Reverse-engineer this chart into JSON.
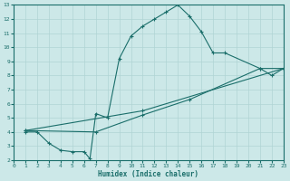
{
  "xlabel": "Humidex (Indice chaleur)",
  "xlim": [
    0,
    23
  ],
  "ylim": [
    2,
    13
  ],
  "xticks": [
    0,
    1,
    2,
    3,
    4,
    5,
    6,
    7,
    8,
    9,
    10,
    11,
    12,
    13,
    14,
    15,
    16,
    17,
    18,
    19,
    20,
    21,
    22,
    23
  ],
  "yticks": [
    2,
    3,
    4,
    5,
    6,
    7,
    8,
    9,
    10,
    11,
    12,
    13
  ],
  "bg_color": "#cce8e8",
  "line_color": "#1a6e6a",
  "grid_color": "#b0d4d4",
  "line1": {
    "x": [
      1,
      2,
      3,
      4,
      5,
      6,
      6.5,
      7,
      8,
      9,
      10,
      11,
      12,
      13,
      14,
      15,
      16,
      17,
      18,
      21,
      22,
      23
    ],
    "y": [
      4,
      4,
      3.2,
      2.7,
      2.6,
      2.6,
      2.1,
      5.3,
      5.0,
      9.2,
      10.8,
      11.5,
      12.0,
      12.5,
      13.0,
      12.2,
      11.1,
      9.6,
      9.6,
      8.5,
      8.0,
      8.5
    ]
  },
  "line2": {
    "x": [
      1,
      11,
      23
    ],
    "y": [
      4.1,
      5.5,
      8.5
    ]
  },
  "line3": {
    "x": [
      1,
      7,
      11,
      15,
      21,
      23
    ],
    "y": [
      4.1,
      4.0,
      5.2,
      6.3,
      8.5,
      8.5
    ]
  }
}
